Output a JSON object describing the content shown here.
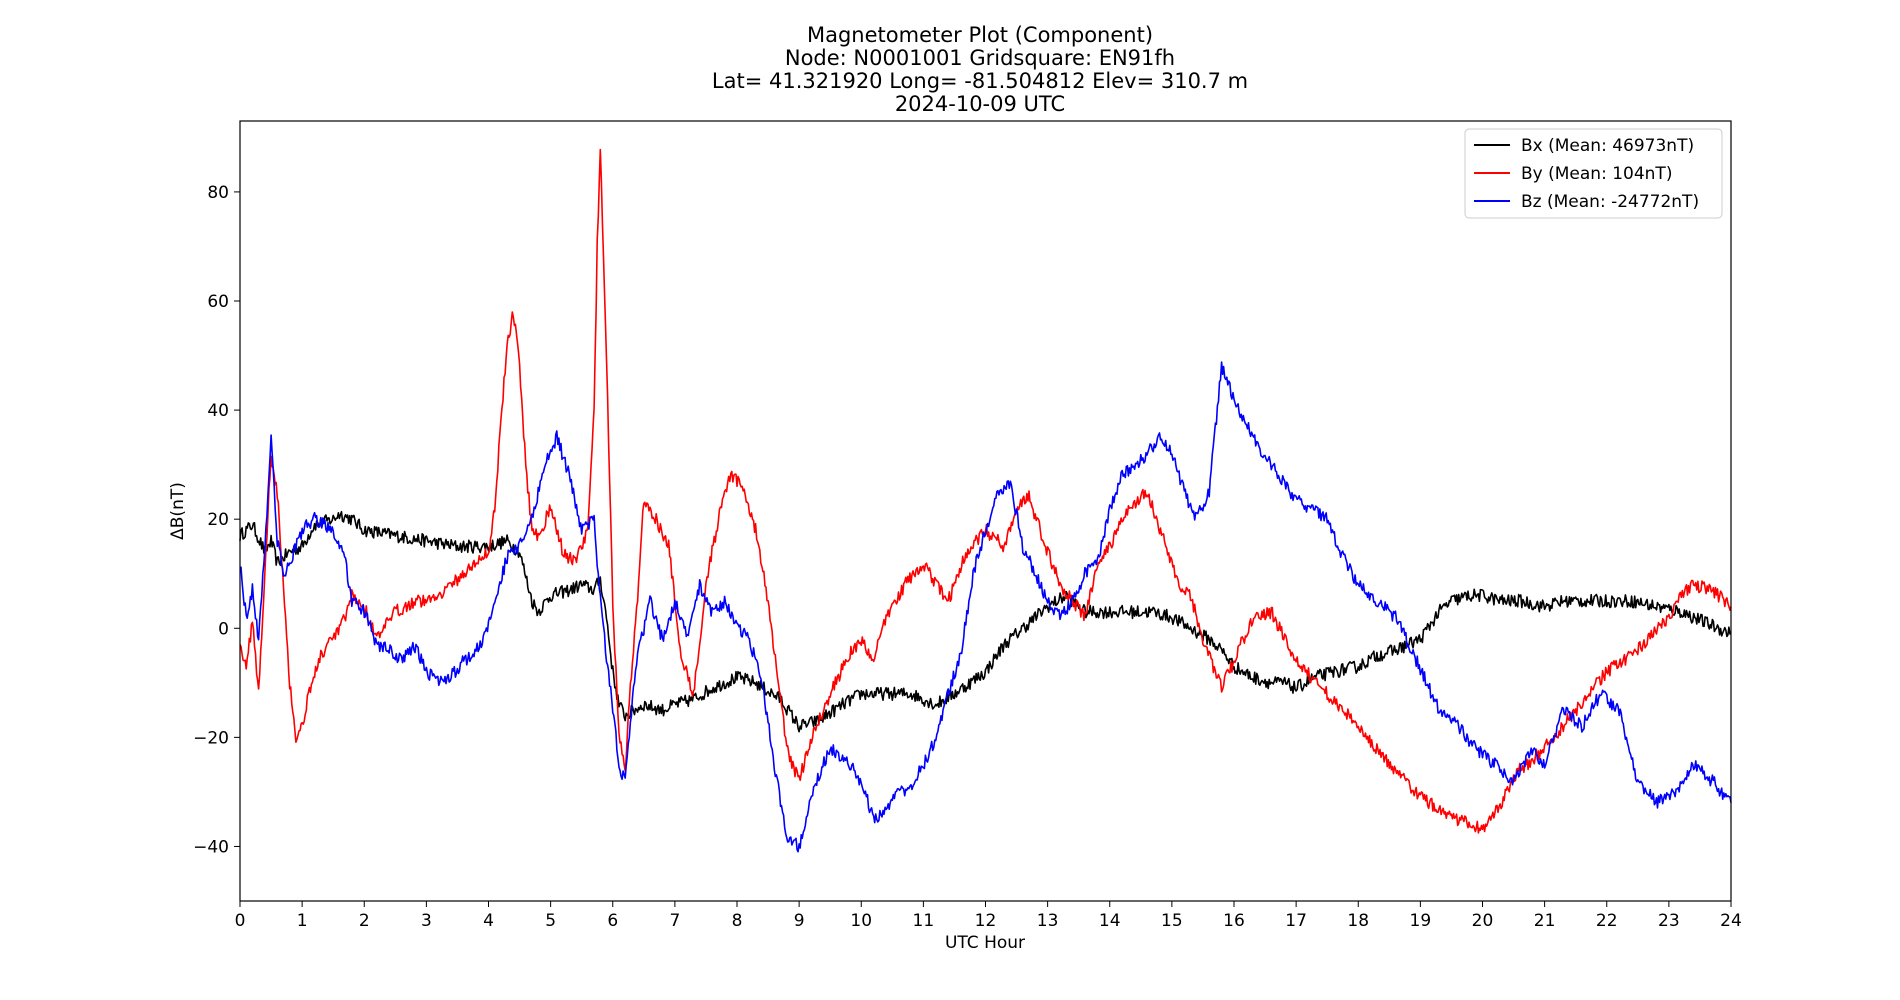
{
  "chart_data": {
    "type": "line",
    "title_lines": [
      "Magnetometer Plot (Component)",
      "Node:  N0001001     Gridsquare:  EN91fh",
      "Lat= 41.321920    Long= -81.504812    Elev= 310.7 m",
      "2024-10-09  UTC"
    ],
    "xlabel": "UTC Hour",
    "ylabel": "ΔB(nT)",
    "xlim": [
      0,
      24
    ],
    "ylim": [
      -50,
      93
    ],
    "xticks": [
      0,
      1,
      2,
      3,
      4,
      5,
      6,
      7,
      8,
      9,
      10,
      11,
      12,
      13,
      14,
      15,
      16,
      17,
      18,
      19,
      20,
      21,
      22,
      23,
      24
    ],
    "yticks": [
      -40,
      -20,
      0,
      20,
      40,
      60,
      80
    ],
    "ytick_labels": [
      "−40",
      "−20",
      "0",
      "20",
      "40",
      "60",
      "80"
    ],
    "grid": false,
    "legend_position": "top-right",
    "series": [
      {
        "name": "Bx (Mean: 46973nT)",
        "color": "#000000",
        "x": [
          0,
          0.2,
          0.4,
          0.5,
          0.6,
          0.8,
          1.0,
          1.2,
          1.5,
          1.6,
          1.8,
          2.0,
          2.5,
          3.0,
          3.5,
          4.0,
          4.3,
          4.5,
          4.7,
          4.8,
          5.0,
          5.3,
          5.5,
          5.7,
          5.8,
          5.9,
          6.0,
          6.1,
          6.2,
          6.5,
          6.8,
          7.0,
          7.3,
          7.6,
          8.0,
          8.3,
          8.7,
          9.0,
          9.3,
          9.7,
          10.0,
          10.5,
          10.8,
          11.0,
          11.2,
          11.5,
          12.0,
          12.3,
          12.6,
          13.0,
          13.3,
          13.6,
          14.0,
          14.3,
          14.7,
          15.0,
          15.3,
          15.6,
          15.8,
          16.0,
          16.3,
          16.6,
          16.8,
          17.0,
          17.3,
          17.6,
          18.0,
          18.3,
          18.6,
          19.0,
          19.3,
          19.5,
          19.8,
          20.0,
          20.3,
          20.6,
          21.0,
          21.3,
          21.6,
          22.0,
          22.4,
          22.8,
          23.2,
          23.6,
          24.0
        ],
        "y": [
          17,
          19,
          14,
          16,
          12,
          14,
          15,
          19,
          20,
          21,
          20,
          18,
          17,
          16,
          15,
          15,
          16,
          14,
          5,
          3,
          6,
          7,
          8,
          7,
          9,
          2,
          -8,
          -14,
          -16,
          -14,
          -15,
          -14,
          -13,
          -11,
          -9,
          -10,
          -13,
          -18,
          -17,
          -14,
          -12,
          -12,
          -12,
          -13,
          -14,
          -12,
          -8,
          -3,
          0,
          4,
          6,
          3,
          3,
          3,
          3,
          2,
          0,
          -2,
          -4,
          -7,
          -9,
          -10,
          -10,
          -11,
          -9,
          -8,
          -7,
          -5,
          -4,
          -2,
          3,
          5,
          6,
          6,
          5,
          5,
          4,
          5,
          5,
          5,
          5,
          4,
          3,
          1,
          -1
        ]
      },
      {
        "name": "By (Mean: 104nT)",
        "color": "#ff0000",
        "x": [
          0,
          0.1,
          0.2,
          0.3,
          0.4,
          0.5,
          0.6,
          0.7,
          0.8,
          0.9,
          1.0,
          1.1,
          1.3,
          1.5,
          1.7,
          1.8,
          2.0,
          2.2,
          2.5,
          2.8,
          3.0,
          3.3,
          3.6,
          3.8,
          4.0,
          4.1,
          4.2,
          4.3,
          4.4,
          4.5,
          4.6,
          4.7,
          4.8,
          5.0,
          5.2,
          5.4,
          5.6,
          5.7,
          5.75,
          5.8,
          5.9,
          6.0,
          6.1,
          6.2,
          6.3,
          6.4,
          6.5,
          6.7,
          6.9,
          7.1,
          7.3,
          7.5,
          7.7,
          7.9,
          8.1,
          8.3,
          8.5,
          8.8,
          9.0,
          9.2,
          9.5,
          9.8,
          10.0,
          10.2,
          10.4,
          10.7,
          11.0,
          11.2,
          11.4,
          11.7,
          12.0,
          12.3,
          12.5,
          12.7,
          13.0,
          13.2,
          13.4,
          13.6,
          13.8,
          14.0,
          14.3,
          14.6,
          14.9,
          15.1,
          15.3,
          15.5,
          15.8,
          16.0,
          16.3,
          16.6,
          17.0,
          17.5,
          18.0,
          18.5,
          19.0,
          19.3,
          19.6,
          20.0,
          20.3,
          20.6,
          21.0,
          21.5,
          22.0,
          22.5,
          22.8,
          23.0,
          23.2,
          23.4,
          23.7,
          24.0
        ],
        "y": [
          -2,
          -8,
          2,
          -12,
          10,
          32,
          25,
          8,
          -10,
          -20,
          -18,
          -12,
          -5,
          -2,
          2,
          6,
          4,
          -2,
          3,
          5,
          5,
          7,
          10,
          12,
          14,
          22,
          38,
          52,
          58,
          48,
          30,
          18,
          17,
          22,
          14,
          12,
          18,
          40,
          70,
          87,
          50,
          5,
          -20,
          -26,
          -8,
          5,
          24,
          20,
          15,
          -5,
          -12,
          8,
          20,
          28,
          26,
          18,
          5,
          -22,
          -28,
          -20,
          -12,
          -5,
          -2,
          -6,
          2,
          8,
          12,
          8,
          5,
          14,
          18,
          15,
          22,
          24,
          14,
          8,
          5,
          2,
          12,
          15,
          22,
          25,
          15,
          8,
          6,
          -2,
          -11,
          -6,
          2,
          3,
          -6,
          -12,
          -18,
          -25,
          -31,
          -33,
          -35,
          -37,
          -32,
          -26,
          -22,
          -15,
          -8,
          -4,
          0,
          2,
          6,
          8,
          7,
          4
        ]
      },
      {
        "name": "Bz (Mean: -24772nT)",
        "color": "#0000ff",
        "x": [
          0,
          0.1,
          0.2,
          0.3,
          0.4,
          0.5,
          0.6,
          0.7,
          0.8,
          0.9,
          1.0,
          1.2,
          1.5,
          1.7,
          1.8,
          2.0,
          2.2,
          2.4,
          2.6,
          2.8,
          3.0,
          3.3,
          3.6,
          3.9,
          4.1,
          4.3,
          4.5,
          4.7,
          4.9,
          5.1,
          5.3,
          5.5,
          5.7,
          5.8,
          5.9,
          6.0,
          6.1,
          6.2,
          6.3,
          6.4,
          6.6,
          6.8,
          7.0,
          7.2,
          7.4,
          7.6,
          7.8,
          8.0,
          8.2,
          8.4,
          8.6,
          8.8,
          9.0,
          9.2,
          9.5,
          9.8,
          10.0,
          10.2,
          10.4,
          10.6,
          10.8,
          11.0,
          11.2,
          11.4,
          11.6,
          11.8,
          12.0,
          12.2,
          12.4,
          12.6,
          12.8,
          13.0,
          13.2,
          13.4,
          13.6,
          13.8,
          14.0,
          14.2,
          14.4,
          14.6,
          14.8,
          15.0,
          15.2,
          15.4,
          15.6,
          15.8,
          16.0,
          16.3,
          16.6,
          16.9,
          17.2,
          17.5,
          17.8,
          18.0,
          18.3,
          18.6,
          18.9,
          19.1,
          19.3,
          19.6,
          19.9,
          20.2,
          20.5,
          20.8,
          21.0,
          21.3,
          21.6,
          21.9,
          22.2,
          22.5,
          22.8,
          23.1,
          23.4,
          23.7,
          24.0
        ],
        "y": [
          12,
          2,
          7,
          -2,
          15,
          35,
          16,
          10,
          12,
          15,
          18,
          20,
          18,
          12,
          5,
          3,
          -3,
          -4,
          -6,
          -3,
          -8,
          -10,
          -6,
          -3,
          5,
          13,
          15,
          20,
          30,
          35,
          28,
          18,
          20,
          5,
          -5,
          -15,
          -25,
          -28,
          -15,
          -5,
          5,
          -2,
          5,
          -2,
          8,
          3,
          5,
          0,
          -2,
          -10,
          -25,
          -38,
          -40,
          -30,
          -22,
          -25,
          -28,
          -35,
          -33,
          -30,
          -29,
          -25,
          -20,
          -12,
          -5,
          10,
          18,
          25,
          27,
          15,
          10,
          5,
          2,
          5,
          10,
          12,
          22,
          28,
          30,
          32,
          35,
          32,
          25,
          20,
          25,
          48,
          42,
          35,
          30,
          25,
          22,
          20,
          12,
          8,
          5,
          2,
          -5,
          -10,
          -15,
          -18,
          -22,
          -25,
          -28,
          -22,
          -25,
          -15,
          -18,
          -12,
          -15,
          -28,
          -32,
          -30,
          -25,
          -28,
          -32
        ]
      }
    ]
  }
}
